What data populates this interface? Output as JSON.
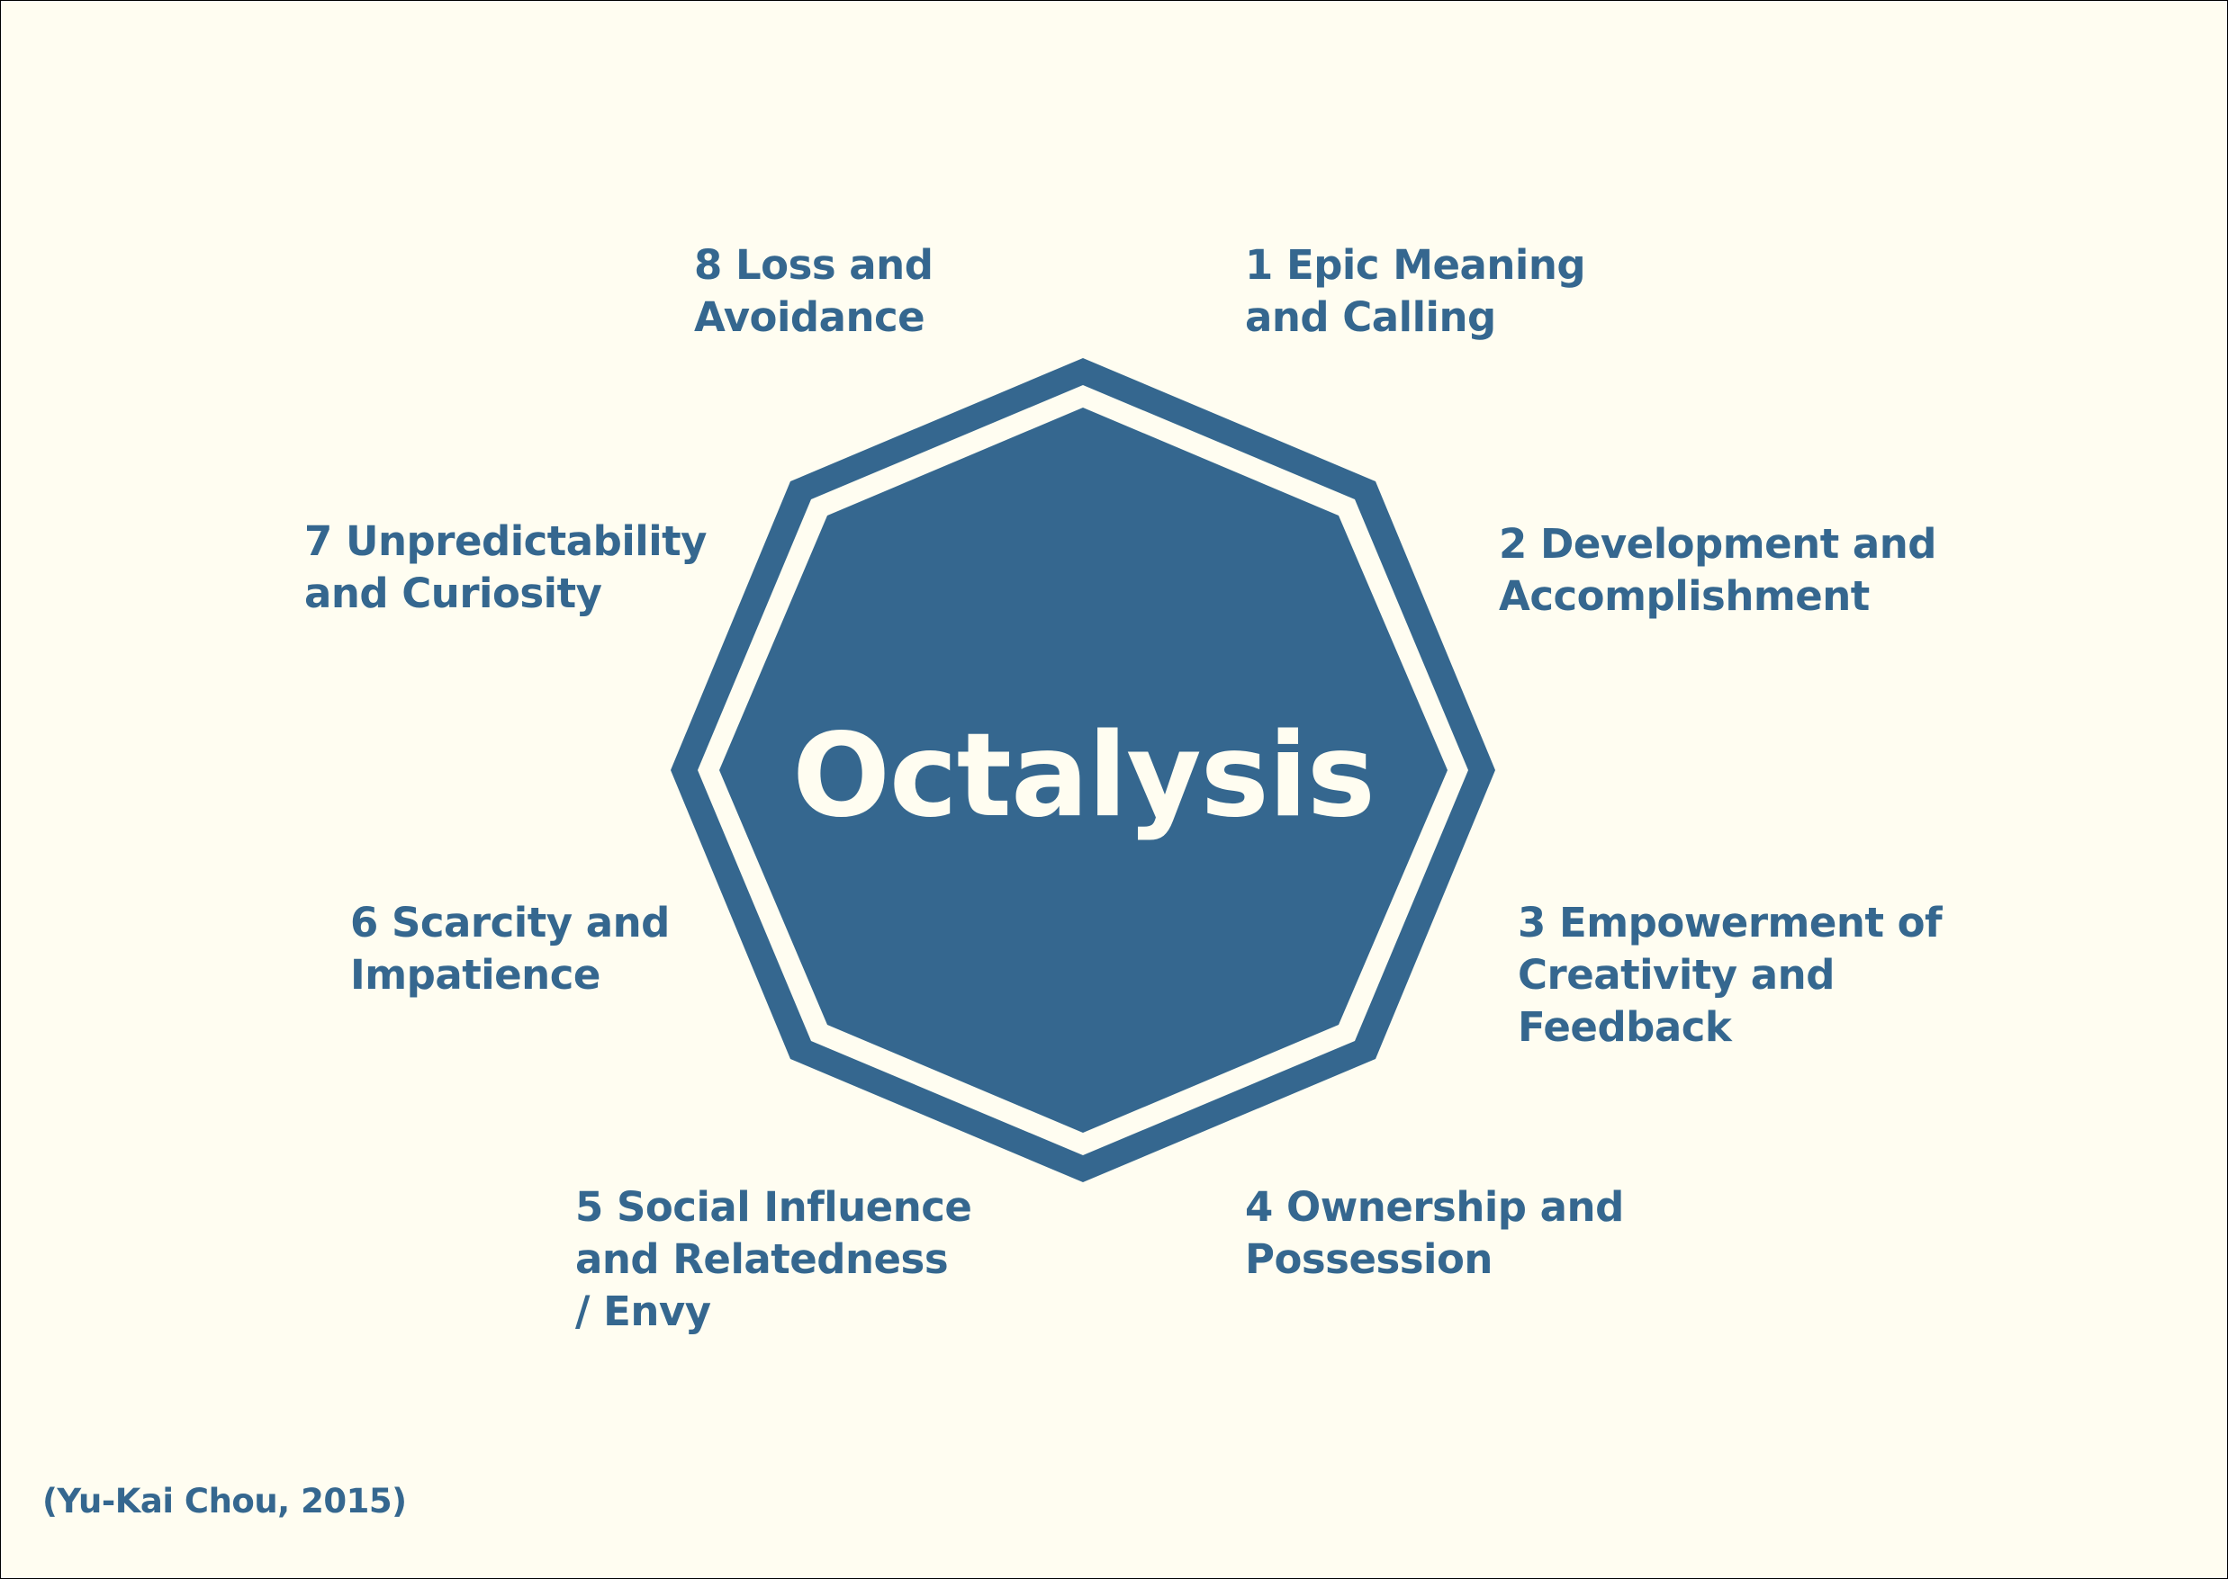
{
  "diagram": {
    "title": "Octalysis",
    "colors": {
      "background": "#fffdf1",
      "octagon_fill": "#35678f",
      "octagon_ring_gap": "#fffdf1",
      "label_text": "#35678f",
      "title_text": "#fffdf1"
    },
    "core_drives": [
      {
        "number": "1",
        "lines": [
          "1 Epic Meaning",
          "and Calling"
        ]
      },
      {
        "number": "2",
        "lines": [
          "2 Development and",
          "Accomplishment"
        ]
      },
      {
        "number": "3",
        "lines": [
          "3 Empowerment of",
          "Creativity and",
          "Feedback"
        ]
      },
      {
        "number": "4",
        "lines": [
          "4 Ownership and",
          "Possession"
        ]
      },
      {
        "number": "5",
        "lines": [
          "5 Social Influence",
          "and Relatedness",
          "/ Envy"
        ]
      },
      {
        "number": "6",
        "lines": [
          "6 Scarcity and",
          "Impatience"
        ]
      },
      {
        "number": "7",
        "lines": [
          "7 Unpredictability",
          "and Curiosity"
        ]
      },
      {
        "number": "8",
        "lines": [
          "8 Loss and",
          "Avoidance"
        ]
      }
    ],
    "citation": "(Yu-Kai Chou, 2015)"
  }
}
